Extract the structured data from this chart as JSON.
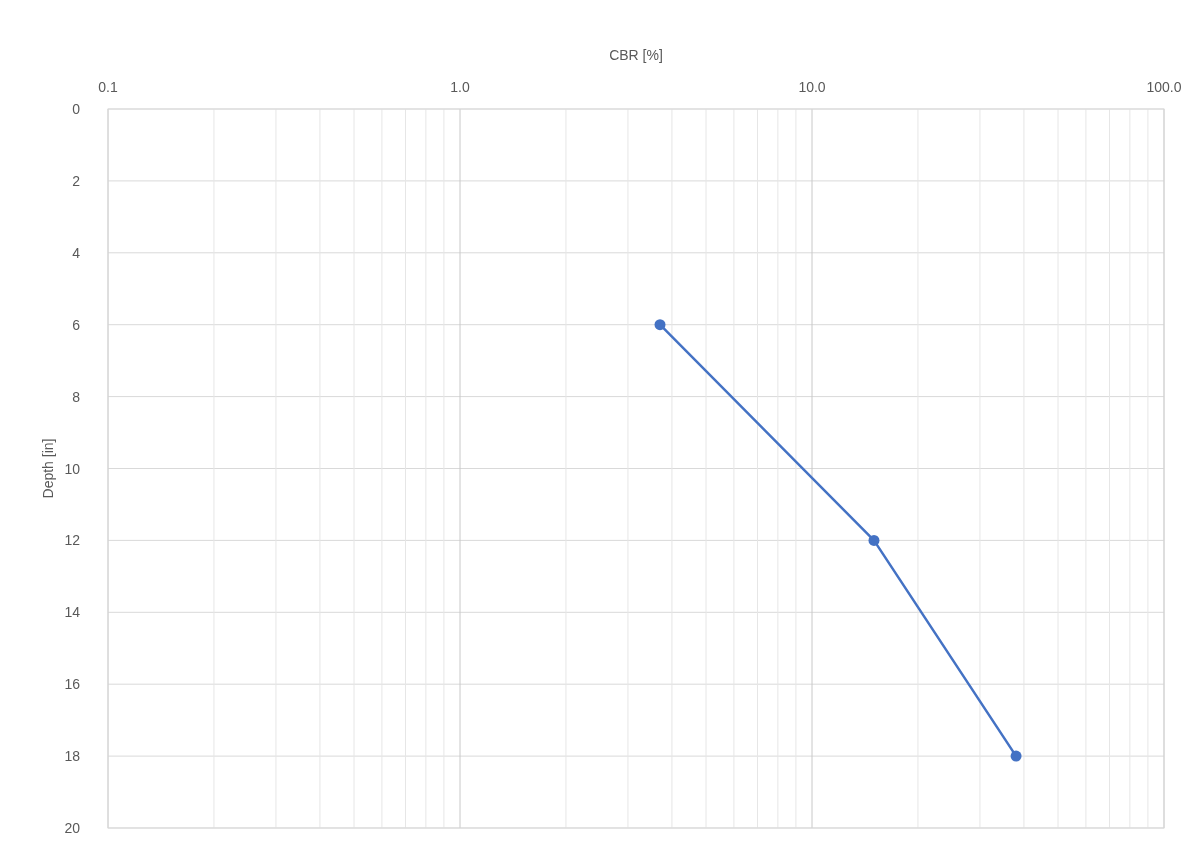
{
  "chart_data": {
    "type": "line",
    "xlabel": "CBR [%]",
    "ylabel": "Depth [in]",
    "log": "x",
    "x": [
      3.7,
      15,
      38
    ],
    "series": [
      {
        "color": "#4472c4",
        "values": [
          6,
          12,
          18
        ]
      }
    ],
    "xlim": [
      0.1,
      100
    ],
    "ylim": [
      20,
      0
    ],
    "xticks": [
      {
        "value": 0.1,
        "label": "0.1"
      },
      {
        "value": 0.2,
        "label": null
      },
      {
        "value": 0.3,
        "label": null
      },
      {
        "value": 0.4,
        "label": null
      },
      {
        "value": 0.5,
        "label": null
      },
      {
        "value": 0.6,
        "label": null
      },
      {
        "value": 0.7,
        "label": null
      },
      {
        "value": 0.8,
        "label": null
      },
      {
        "value": 0.9,
        "label": null
      },
      {
        "value": 1,
        "label": "1.0"
      },
      {
        "value": 2,
        "label": null
      },
      {
        "value": 3,
        "label": null
      },
      {
        "value": 4,
        "label": null
      },
      {
        "value": 5,
        "label": null
      },
      {
        "value": 6,
        "label": null
      },
      {
        "value": 7,
        "label": null
      },
      {
        "value": 8,
        "label": null
      },
      {
        "value": 9,
        "label": null
      },
      {
        "value": 10,
        "label": "10.0"
      },
      {
        "value": 20,
        "label": null
      },
      {
        "value": 30,
        "label": null
      },
      {
        "value": 40,
        "label": null
      },
      {
        "value": 50,
        "label": null
      },
      {
        "value": 60,
        "label": null
      },
      {
        "value": 70,
        "label": null
      },
      {
        "value": 80,
        "label": null
      },
      {
        "value": 90,
        "label": null
      },
      {
        "value": 100,
        "label": "100.0"
      }
    ],
    "yticks": [
      0,
      2,
      4,
      6,
      8,
      10,
      12,
      14,
      16,
      18,
      20
    ],
    "grid": true,
    "marker": "circle",
    "line_style": "solid"
  }
}
